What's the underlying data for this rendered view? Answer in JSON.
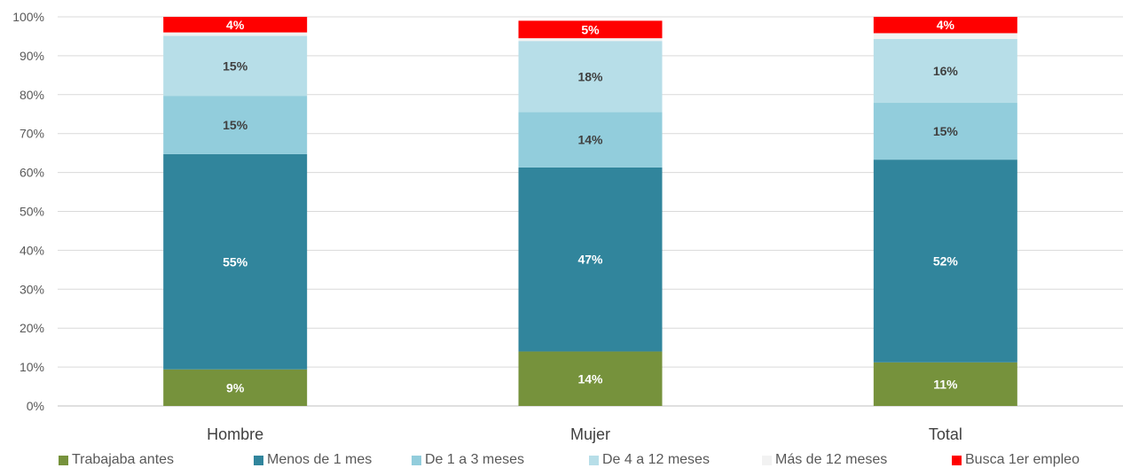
{
  "chart_data": {
    "type": "bar",
    "stacked": true,
    "percent": true,
    "categories": [
      "Hombre",
      "Mujer",
      "Total"
    ],
    "ylim": [
      0,
      100
    ],
    "yticks": [
      "0%",
      "10%",
      "20%",
      "30%",
      "40%",
      "50%",
      "60%",
      "70%",
      "80%",
      "90%",
      "100%"
    ],
    "grid": true,
    "legend_position": "bottom",
    "series": [
      {
        "name": "Trabajaba antes",
        "color": "#76923C",
        "label_color": "#ffffff",
        "values": [
          9.4,
          14.0,
          11.2
        ],
        "labels": [
          "9%",
          "14%",
          "11%"
        ]
      },
      {
        "name": "Menos de 1 mes",
        "color": "#31859C",
        "label_color": "#ffffff",
        "values": [
          55.3,
          47.3,
          52.1
        ],
        "labels": [
          "55%",
          "47%",
          "52%"
        ]
      },
      {
        "name": "De 1 a 3 meses",
        "color": "#92CDDC",
        "label_color": "#404040",
        "values": [
          15.0,
          14.2,
          14.6
        ],
        "labels": [
          "15%",
          "14%",
          "15%"
        ]
      },
      {
        "name": "De 4 a 12 meses",
        "color": "#B7DEE8",
        "label_color": "#404040",
        "values": [
          15.4,
          18.3,
          16.4
        ],
        "labels": [
          "15%",
          "18%",
          "16%"
        ]
      },
      {
        "name": "Más de 12 meses",
        "color": "#F2F2F2",
        "label_color": "#404040",
        "values": [
          0.9,
          0.7,
          1.5
        ],
        "labels": [
          "",
          "",
          ""
        ]
      },
      {
        "name": "Busca 1er empleo",
        "color": "#FF0000",
        "label_color": "#ffffff",
        "values": [
          4.0,
          4.5,
          4.2
        ],
        "labels": [
          "4%",
          "5%",
          "4%"
        ]
      }
    ]
  }
}
